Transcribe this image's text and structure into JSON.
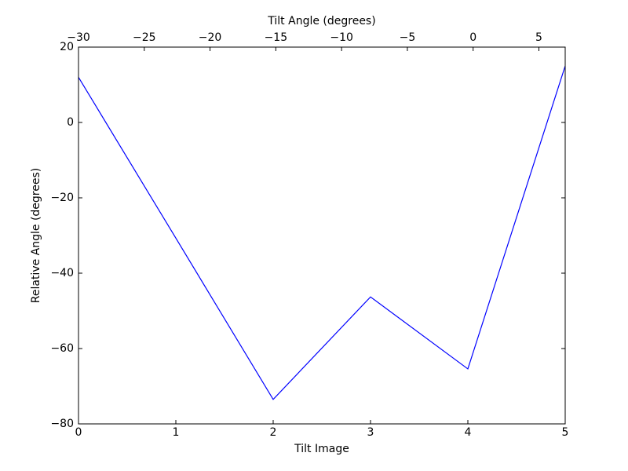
{
  "chart_data": {
    "type": "line",
    "xlabel": "Tilt Image",
    "ylabel": "Relative Angle (degrees)",
    "x2label": "Tilt Angle (degrees)",
    "x": [
      0,
      1,
      2,
      3,
      4,
      5
    ],
    "series": [
      {
        "color": "#0000ff",
        "values": [
          12,
          -30.7,
          -73.5,
          -46.3,
          -65.4,
          15
        ]
      }
    ],
    "xlim": [
      0,
      5
    ],
    "xticks": [
      0,
      1,
      2,
      3,
      4,
      5
    ],
    "x2lim": [
      -30,
      7
    ],
    "x2ticks": [
      {
        "value": -30,
        "label": "−30"
      },
      {
        "value": -25,
        "label": "−25"
      },
      {
        "value": -20,
        "label": "−20"
      },
      {
        "value": -15,
        "label": "−15"
      },
      {
        "value": -10,
        "label": "−10"
      },
      {
        "value": -5,
        "label": "−5"
      },
      0,
      5
    ],
    "ylim": [
      -80,
      20
    ],
    "yticks": [
      {
        "value": -80,
        "label": "−80"
      },
      {
        "value": -60,
        "label": "−60"
      },
      {
        "value": -40,
        "label": "−40"
      },
      {
        "value": -20,
        "label": "−20"
      },
      0,
      20
    ],
    "grid": false
  }
}
